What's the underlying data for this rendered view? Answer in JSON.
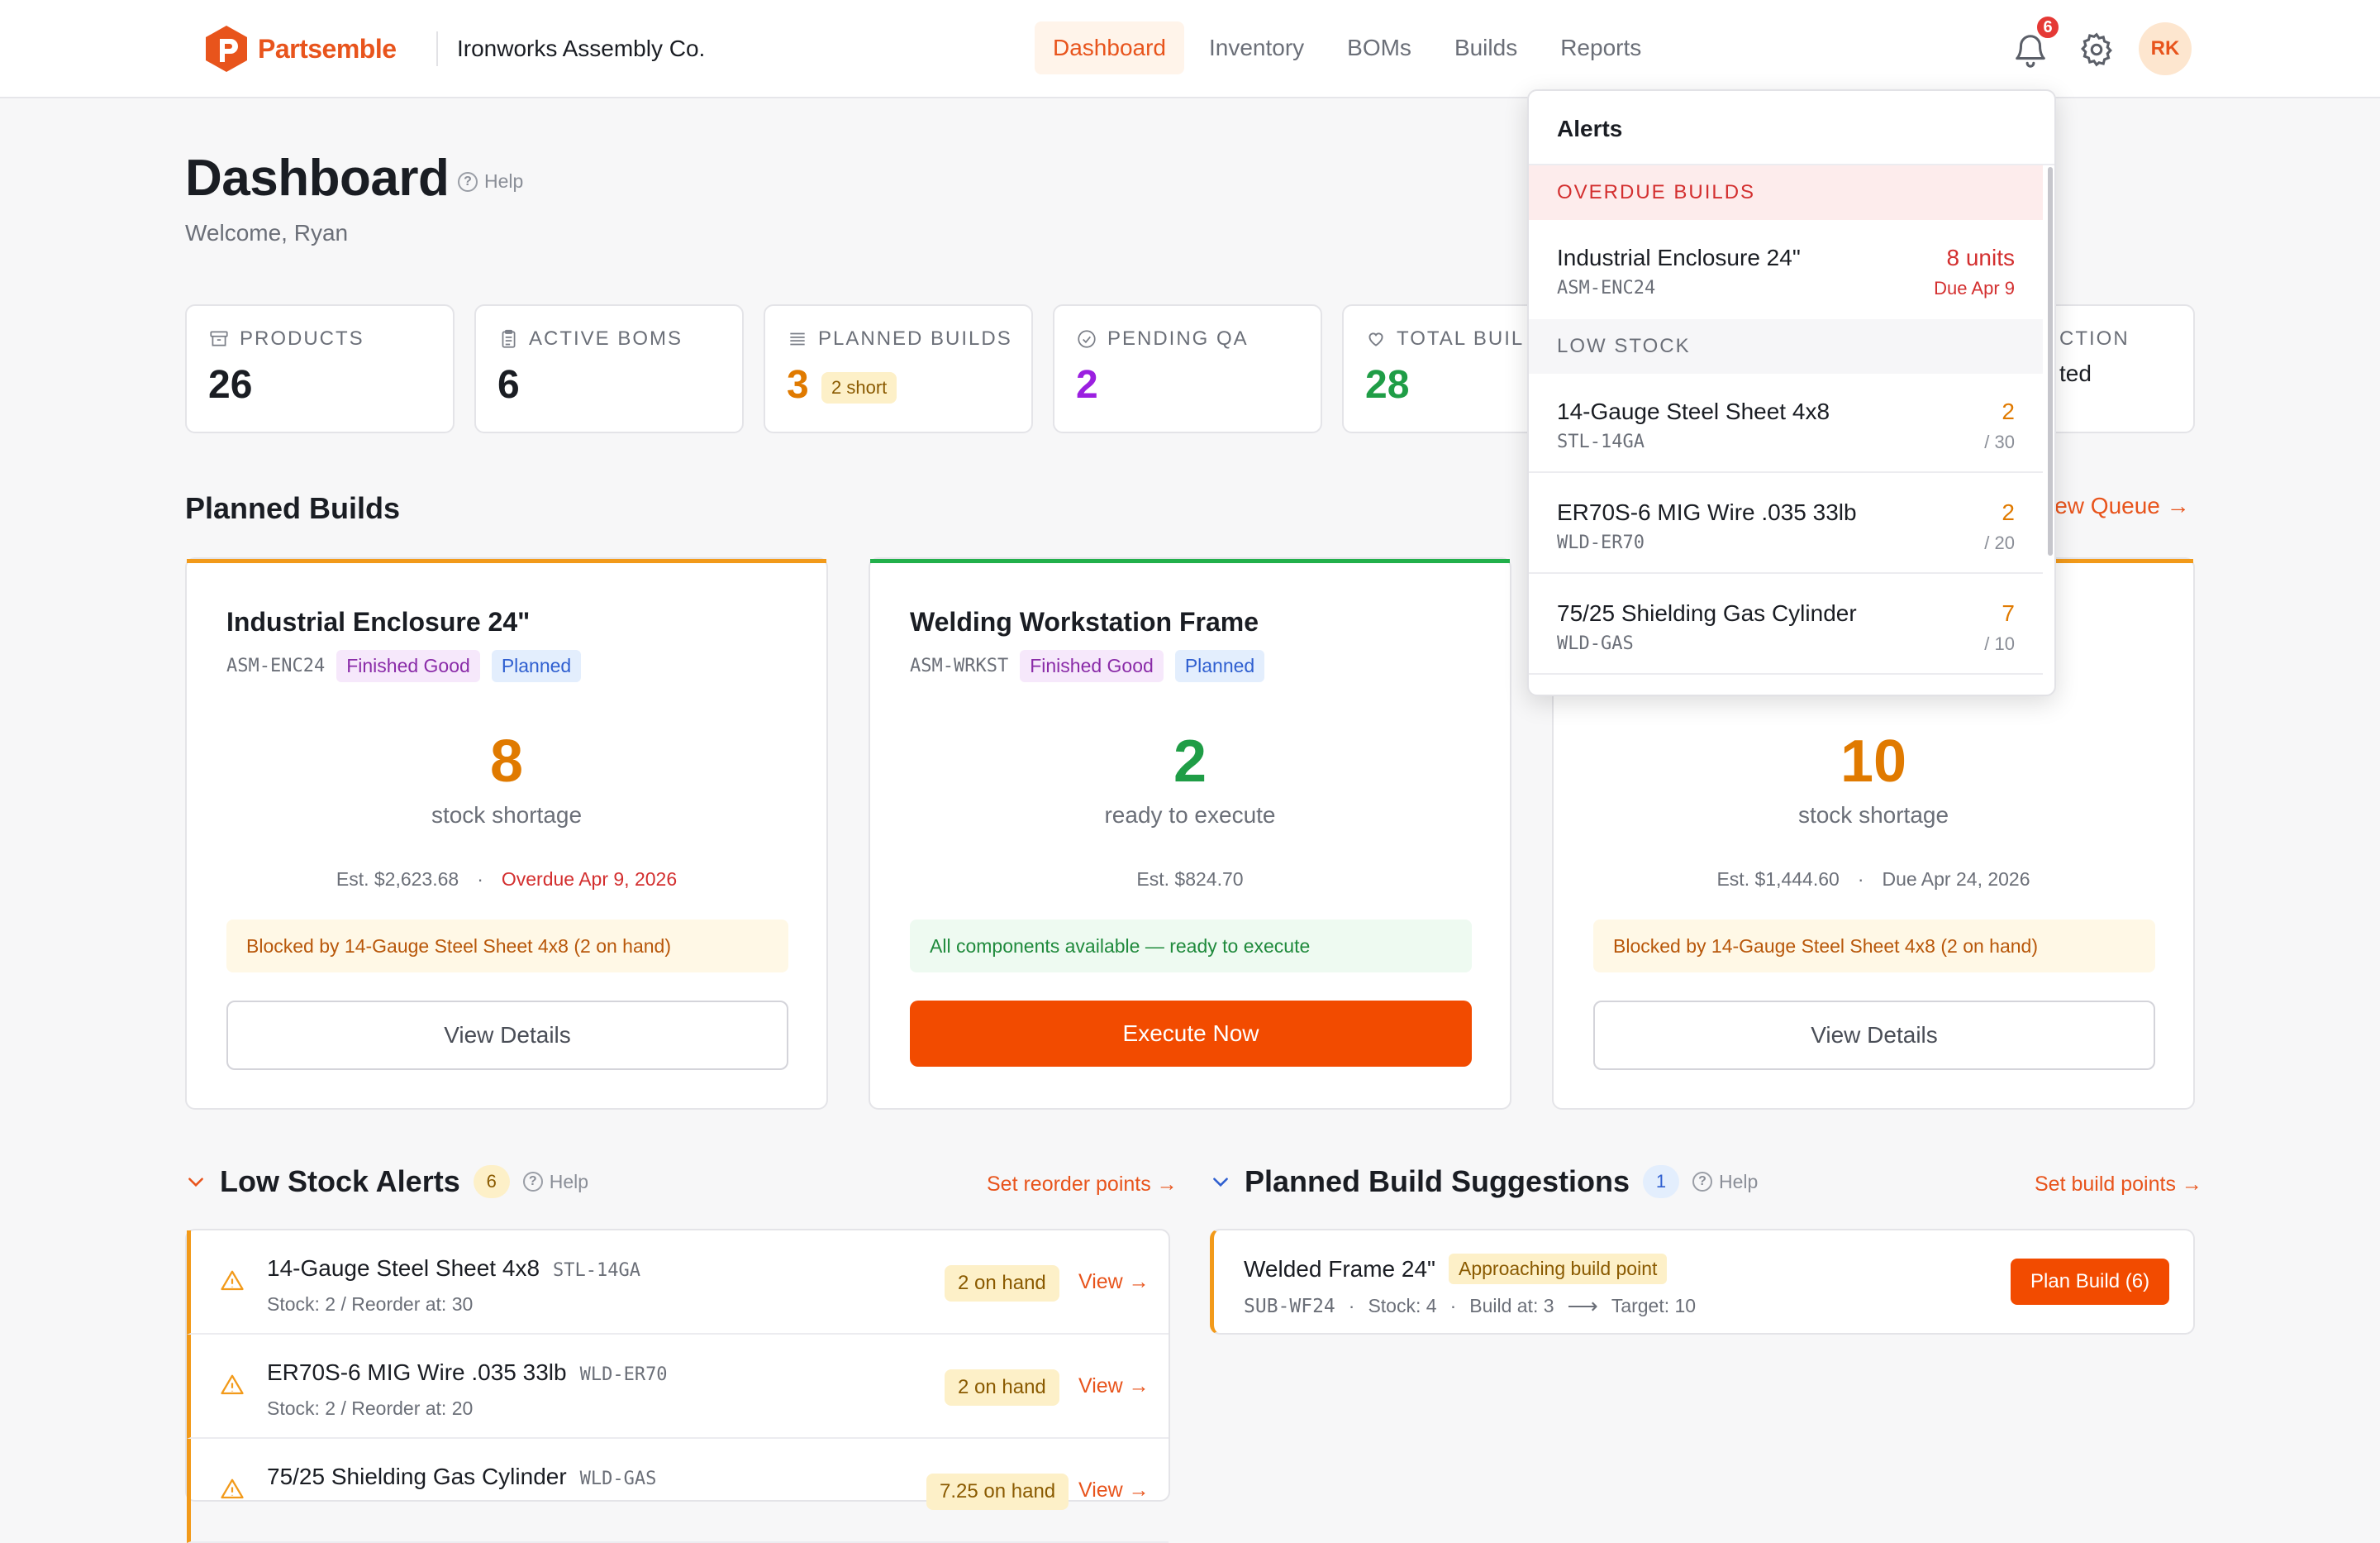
{
  "brand": {
    "name": "Partsemble",
    "company": "Ironworks Assembly Co.",
    "accent": "#e8541c"
  },
  "nav": {
    "items": [
      "Dashboard",
      "Inventory",
      "BOMs",
      "Builds",
      "Reports"
    ],
    "active": "Dashboard"
  },
  "header": {
    "notification_count": "6",
    "avatar_initials": "RK"
  },
  "page": {
    "title": "Dashboard",
    "help": "Help",
    "welcome": "Welcome, Ryan"
  },
  "stats": [
    {
      "label": "PRODUCTS",
      "value": "26",
      "icon": "archive-icon"
    },
    {
      "label": "ACTIVE BOMS",
      "value": "6",
      "icon": "clipboard-icon"
    },
    {
      "label": "PLANNED BUILDS",
      "value": "3",
      "badge": "2 short",
      "icon": "list-icon",
      "color": "#e07a00"
    },
    {
      "label": "PENDING QA",
      "value": "2",
      "icon": "check-circle-icon",
      "color": "#9b1fe0"
    },
    {
      "label": "TOTAL BUIL",
      "value": "28",
      "icon": "heart-icon",
      "color": "#1f9d46"
    },
    {
      "label": "CTION",
      "value": "ted"
    }
  ],
  "planned_builds": {
    "title": "Planned Builds",
    "link": "iew Queue →",
    "cards": [
      {
        "title": "Industrial Enclosure 24\"",
        "sku": "ASM-ENC24",
        "type": "Finished Good",
        "status": "Planned",
        "number": "8",
        "number_label": "stock shortage",
        "cost": "Est. $2,623.68",
        "due": "Overdue Apr 9, 2026",
        "note": "Blocked by 14-Gauge Steel Sheet 4x8 (2 on hand)",
        "button": "View Details"
      },
      {
        "title": "Welding Workstation Frame",
        "sku": "ASM-WRKST",
        "type": "Finished Good",
        "status": "Planned",
        "number": "2",
        "number_label": "ready to execute",
        "cost": "Est. $824.70",
        "note": "All components available — ready to execute",
        "button": "Execute Now"
      },
      {
        "number": "10",
        "number_label": "stock shortage",
        "cost": "Est. $1,444.60",
        "due": "Due Apr 24, 2026",
        "note": "Blocked by 14-Gauge Steel Sheet 4x8 (2 on hand)",
        "button": "View Details"
      }
    ]
  },
  "low_stock": {
    "title": "Low Stock Alerts",
    "count": "6",
    "help": "Help",
    "link": "Set reorder points →",
    "items": [
      {
        "name": "14-Gauge Steel Sheet 4x8",
        "sku": "STL-14GA",
        "meta": "Stock: 2 / Reorder at: 30",
        "on_hand": "2 on hand",
        "view": "View →"
      },
      {
        "name": "ER70S-6 MIG Wire .035 33lb",
        "sku": "WLD-ER70",
        "meta": "Stock: 2 / Reorder at: 20",
        "on_hand": "2 on hand",
        "view": "View →"
      },
      {
        "name": "75/25 Shielding Gas Cylinder",
        "sku": "WLD-GAS",
        "meta": "",
        "on_hand": "7.25 on hand",
        "view": "View →"
      }
    ]
  },
  "suggestions": {
    "title": "Planned Build Suggestions",
    "count": "1",
    "help": "Help",
    "link": "Set build points →",
    "items": [
      {
        "name": "Welded Frame 24\"",
        "tag": "Approaching build point",
        "sku": "SUB-WF24",
        "stock": "Stock: 4",
        "build_at": "Build at: 3",
        "target": "Target: 10",
        "button": "Plan Build (6)"
      }
    ]
  },
  "alerts": {
    "title": "Alerts",
    "overdue_label": "OVERDUE BUILDS",
    "overdue": [
      {
        "name": "Industrial Enclosure 24\"",
        "sku": "ASM-ENC24",
        "qty": "8 units",
        "due": "Due Apr 9"
      }
    ],
    "low_label": "LOW STOCK",
    "low": [
      {
        "name": "14-Gauge Steel Sheet 4x8",
        "sku": "STL-14GA",
        "qty": "2",
        "of": "/ 30"
      },
      {
        "name": "ER70S-6 MIG Wire .035 33lb",
        "sku": "WLD-ER70",
        "qty": "2",
        "of": "/ 20"
      },
      {
        "name": "75/25 Shielding Gas Cylinder",
        "sku": "WLD-GAS",
        "qty": "7",
        "of": "/ 10"
      }
    ]
  }
}
